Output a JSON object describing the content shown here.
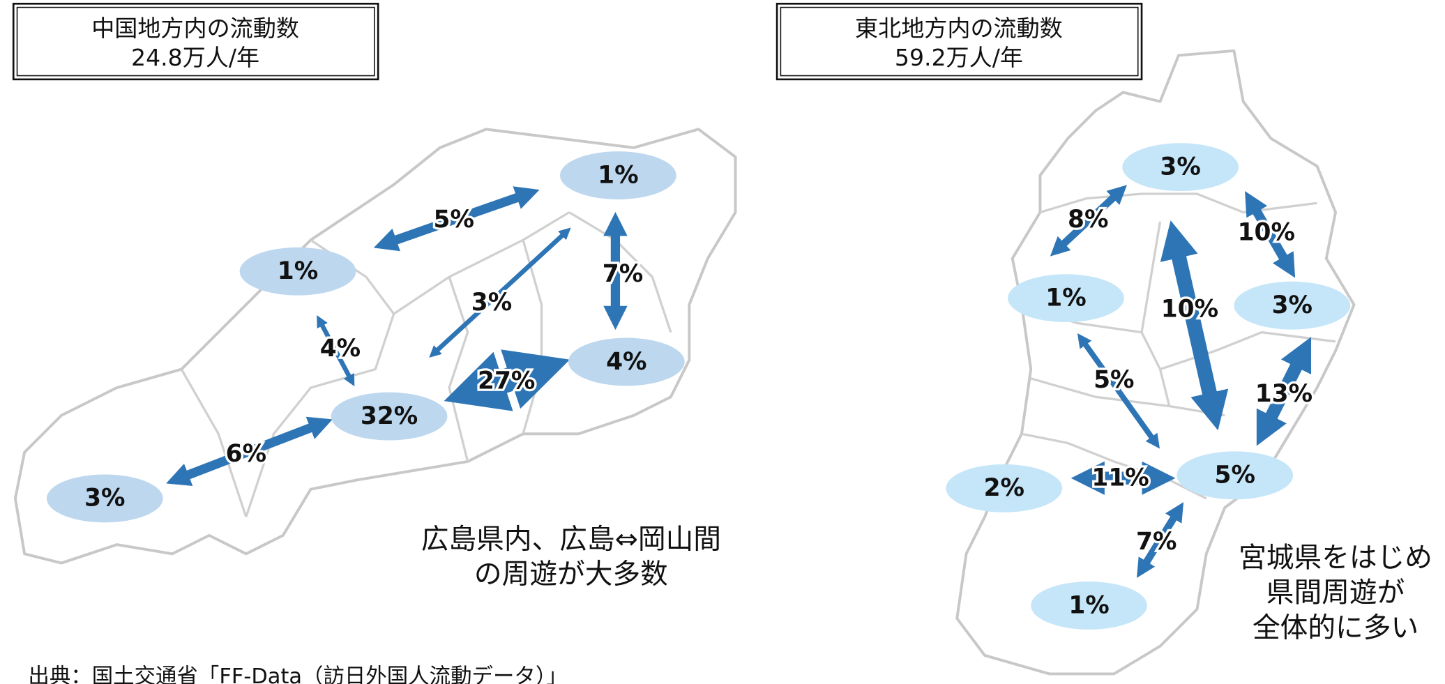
{
  "panels": [
    {
      "title": "中国地方内の流動数",
      "total": "24.8万人/年",
      "nodes": [
        "1%",
        "1%",
        "32%",
        "4%",
        "3%"
      ],
      "flows": [
        "5%",
        "7%",
        "3%",
        "4%",
        "27%",
        "6%"
      ],
      "note": [
        "広島県内、広島⇔岡山間",
        "の周遊が大多数"
      ]
    },
    {
      "title": "東北地方内の流動数",
      "total": "59.2万人/年",
      "nodes": [
        "3%",
        "1%",
        "3%",
        "2%",
        "5%",
        "1%"
      ],
      "flows": [
        "8%",
        "10%",
        "10%",
        "5%",
        "13%",
        "11%",
        "7%"
      ],
      "note": [
        "宮城県をはじめ",
        "県間周遊が",
        "全体的に多い"
      ]
    }
  ],
  "source": "出典：国土交通省「FF-Data（訪日外国人流動データ）」"
}
